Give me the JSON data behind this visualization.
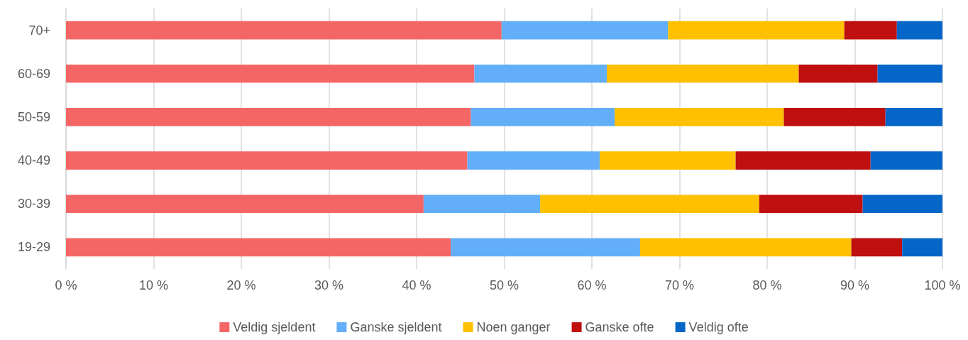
{
  "chart_data": {
    "type": "bar",
    "orientation": "horizontal",
    "stacked": true,
    "categories": [
      "70+",
      "60-69",
      "50-59",
      "40-49",
      "30-39",
      "19-29"
    ],
    "series": [
      {
        "name": "Veldig sjeldent",
        "color": "#f46666",
        "values": [
          49.7,
          46.6,
          46.2,
          45.8,
          40.8,
          43.9
        ]
      },
      {
        "name": "Ganske sjeldent",
        "color": "#62aef8",
        "values": [
          19.0,
          15.1,
          16.4,
          15.1,
          13.3,
          21.6
        ]
      },
      {
        "name": "Noen ganger",
        "color": "#ffc000",
        "values": [
          20.1,
          21.9,
          19.3,
          15.5,
          25.0,
          24.1
        ]
      },
      {
        "name": "Ganske ofte",
        "color": "#c00f0f",
        "values": [
          6.0,
          9.0,
          11.6,
          15.4,
          11.8,
          5.8
        ]
      },
      {
        "name": "Veldig ofte",
        "color": "#0566c8",
        "values": [
          5.2,
          7.4,
          6.5,
          8.2,
          9.1,
          4.6
        ]
      }
    ],
    "xlim": [
      0,
      100
    ],
    "xticks": [
      {
        "value": 0,
        "label": "0 %"
      },
      {
        "value": 10,
        "label": "10 %"
      },
      {
        "value": 20,
        "label": "20 %"
      },
      {
        "value": 30,
        "label": "30 %"
      },
      {
        "value": 40,
        "label": "40 %"
      },
      {
        "value": 50,
        "label": "50 %"
      },
      {
        "value": 60,
        "label": "60 %"
      },
      {
        "value": 70,
        "label": "70 %"
      },
      {
        "value": 80,
        "label": "80 %"
      },
      {
        "value": 90,
        "label": "90 %"
      },
      {
        "value": 100,
        "label": "100 %"
      }
    ],
    "grid": "x",
    "legend": "bottom"
  }
}
